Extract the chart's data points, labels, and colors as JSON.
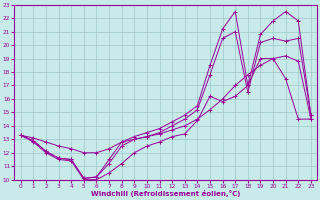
{
  "xlabel": "Windchill (Refroidissement éolien,°C)",
  "xlim": [
    -0.5,
    23.5
  ],
  "ylim": [
    10,
    23
  ],
  "xticks": [
    0,
    1,
    2,
    3,
    4,
    5,
    6,
    7,
    8,
    9,
    10,
    11,
    12,
    13,
    14,
    15,
    16,
    17,
    18,
    19,
    20,
    21,
    22,
    23
  ],
  "yticks": [
    10,
    11,
    12,
    13,
    14,
    15,
    16,
    17,
    18,
    19,
    20,
    21,
    22,
    23
  ],
  "bg_color": "#c8eaea",
  "line_color": "#990099",
  "grid_color": "#9ec8c8",
  "series": [
    {
      "x": [
        0,
        1,
        2,
        3,
        4,
        5,
        6,
        7,
        8,
        9,
        10,
        11,
        12,
        13,
        14,
        15,
        16,
        17,
        18,
        19,
        20,
        21,
        22,
        23
      ],
      "y": [
        13.3,
        12.8,
        12.0,
        11.5,
        11.4,
        10.0,
        10.0,
        10.5,
        11.2,
        12.0,
        12.5,
        12.8,
        13.2,
        13.4,
        14.4,
        16.2,
        15.8,
        16.2,
        17.0,
        19.0,
        19.0,
        17.5,
        14.5,
        14.5
      ]
    },
    {
      "x": [
        0,
        1,
        2,
        3,
        4,
        5,
        6,
        7,
        8,
        9,
        10,
        11,
        12,
        13,
        14,
        15,
        16,
        17,
        18,
        19,
        20,
        21,
        22,
        23
      ],
      "y": [
        13.3,
        12.9,
        12.1,
        11.6,
        11.5,
        10.1,
        10.2,
        11.2,
        12.5,
        13.0,
        13.2,
        13.5,
        14.0,
        14.5,
        15.2,
        17.8,
        20.5,
        21.0,
        16.5,
        20.2,
        20.5,
        20.3,
        20.5,
        14.8
      ]
    },
    {
      "x": [
        0,
        1,
        2,
        3,
        4,
        5,
        6,
        7,
        8,
        9,
        10,
        11,
        12,
        13,
        14,
        15,
        16,
        17,
        18,
        19,
        20,
        21,
        22,
        23
      ],
      "y": [
        13.3,
        12.9,
        12.1,
        11.6,
        11.5,
        10.1,
        10.2,
        11.5,
        12.8,
        13.2,
        13.5,
        13.8,
        14.3,
        14.8,
        15.5,
        18.5,
        21.2,
        22.5,
        17.0,
        20.8,
        21.8,
        22.5,
        21.8,
        14.8
      ]
    },
    {
      "x": [
        0,
        1,
        2,
        3,
        4,
        5,
        6,
        7,
        8,
        9,
        10,
        11,
        12,
        13,
        14,
        15,
        16,
        17,
        18,
        19,
        20,
        21,
        22,
        23
      ],
      "y": [
        13.3,
        13.1,
        12.8,
        12.5,
        12.3,
        12.0,
        12.0,
        12.3,
        12.8,
        13.0,
        13.2,
        13.4,
        13.7,
        14.0,
        14.5,
        15.2,
        16.0,
        17.0,
        17.8,
        18.5,
        19.0,
        19.2,
        18.8,
        14.5
      ]
    }
  ]
}
